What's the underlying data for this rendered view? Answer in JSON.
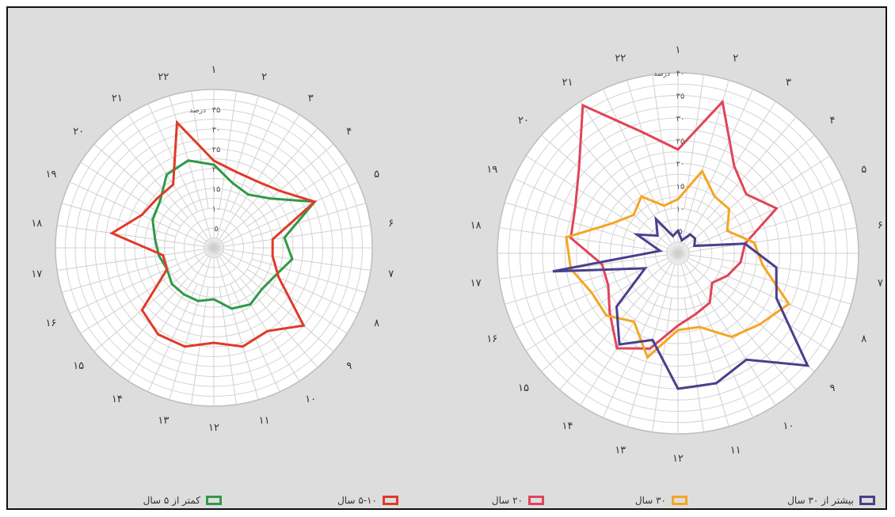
{
  "chart_data": [
    {
      "type": "radar",
      "direction_labels": [
        "۱",
        "۲",
        "۳",
        "۴",
        "۵",
        "۶",
        "۷",
        "۸",
        "۹",
        "۱۰",
        "۱۱",
        "۱۲",
        "۱۳",
        "۱۴",
        "۱۵",
        "۱۶",
        "۱۷",
        "۱۸",
        "۱۹",
        "۲۰",
        "۲۱",
        "۲۲"
      ],
      "radial_ticks": [
        "۵",
        "۱۰",
        "۱۵",
        "۲۰",
        "۲۵",
        "۳۰",
        "۳۵"
      ],
      "radial_unit": "درصد",
      "rmax": 40,
      "series": [
        {
          "name": "کمتر از ۵ سال",
          "color": "#2e9a45",
          "values": [
            21,
            17,
            16,
            19,
            28,
            18,
            20,
            17,
            16,
            17,
            16,
            13,
            14,
            14,
            14,
            13,
            14,
            15,
            17,
            18,
            22,
            23
          ]
        },
        {
          "name": "۵-۱۰ سال",
          "color": "#e03a2a",
          "values": [
            22,
            20,
            20,
            22,
            28,
            15,
            15,
            18,
            30,
            25,
            26,
            24,
            26,
            26,
            24,
            13,
            13,
            26,
            20,
            19,
            19,
            33
          ]
        }
      ],
      "legend": [
        {
          "name": "کمتر از ۵ سال",
          "color": "#2e9a45"
        },
        {
          "name": "۵-۱۰ سال",
          "color": "#e03a2a"
        }
      ]
    },
    {
      "type": "radar",
      "direction_labels": [
        "۱",
        "۲",
        "۳",
        "۴",
        "۵",
        "۶",
        "۷",
        "۸",
        "۹",
        "۱۰",
        "۱۱",
        "۱۲",
        "۱۳",
        "۱۴",
        "۱۵",
        "۱۶",
        "۱۷",
        "۱۸",
        "۱۹",
        "۲۰",
        "۲۱",
        "۲۲"
      ],
      "radial_ticks": [
        "۵",
        "۱۰",
        "۱۵",
        "۲۰",
        "۲۵",
        "۳۰",
        "۳۵",
        "۴۰"
      ],
      "radial_unit": "درصد",
      "rmax": 40,
      "series": [
        {
          "name": "۲۰ سال",
          "color": "#e0445a",
          "values": [
            23,
            35,
            23,
            20,
            24,
            15,
            14,
            12,
            10,
            13,
            14,
            16,
            22,
            25,
            20,
            17,
            17,
            24,
            25,
            29,
            39,
            28
          ]
        },
        {
          "name": "۳۰ سال",
          "color": "#f5a623",
          "values": [
            12,
            19,
            15,
            15,
            12,
            17,
            19,
            27,
            24,
            22,
            17,
            17,
            24,
            18,
            21,
            21,
            24,
            25,
            16,
            13,
            15,
            11
          ]
        },
        {
          "name": "بیشتر از ۳۰ سال",
          "color": "#4a3f8c",
          "values": [
            5,
            3,
            5,
            5,
            4,
            15,
            22,
            24,
            38,
            28,
            30,
            30,
            20,
            24,
            18,
            8,
            28,
            4,
            10,
            6,
            9,
            4
          ]
        }
      ],
      "legend": [
        {
          "name": "۲۰ سال",
          "color": "#e0445a"
        },
        {
          "name": "۳۰ سال",
          "color": "#f5a623"
        },
        {
          "name": "بیشتر از ۳۰ سال",
          "color": "#4a3f8c"
        }
      ]
    }
  ]
}
